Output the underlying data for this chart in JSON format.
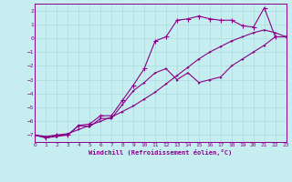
{
  "xlabel": "Windchill (Refroidissement éolien,°C)",
  "bg_color": "#c6eef0",
  "grid_color": "#a8d8da",
  "line_color": "#880088",
  "xmin": 0,
  "xmax": 23,
  "ymin": -7.5,
  "ymax": 2.5,
  "yticks": [
    -7,
    -6,
    -5,
    -4,
    -3,
    -2,
    -1,
    0,
    1,
    2
  ],
  "xticks": [
    0,
    1,
    2,
    3,
    4,
    5,
    6,
    7,
    8,
    9,
    10,
    11,
    12,
    13,
    14,
    15,
    16,
    17,
    18,
    19,
    20,
    21,
    22,
    23
  ],
  "line_diag_x": [
    0,
    1,
    2,
    3,
    4,
    5,
    6,
    7,
    8,
    9,
    10,
    11,
    12,
    13,
    14,
    15,
    16,
    17,
    18,
    19,
    20,
    21,
    22,
    23
  ],
  "line_diag_y": [
    -7.0,
    -7.1,
    -7.0,
    -6.9,
    -6.6,
    -6.3,
    -6.0,
    -5.7,
    -5.3,
    -4.9,
    -4.4,
    -3.9,
    -3.3,
    -2.7,
    -2.1,
    -1.5,
    -1.0,
    -0.6,
    -0.2,
    0.1,
    0.4,
    0.6,
    0.4,
    0.1
  ],
  "line_smooth_x": [
    0,
    1,
    2,
    3,
    4,
    5,
    6,
    7,
    8,
    9,
    10,
    11,
    12,
    13,
    14,
    15,
    16,
    17,
    18,
    19,
    20,
    21,
    22,
    23
  ],
  "line_smooth_y": [
    -7.0,
    -7.2,
    -7.1,
    -7.0,
    -6.3,
    -6.4,
    -5.8,
    -5.8,
    -4.8,
    -3.8,
    -3.2,
    -2.5,
    -2.2,
    -3.0,
    -2.5,
    -3.2,
    -3.0,
    -2.8,
    -2.0,
    -1.5,
    -1.0,
    -0.5,
    0.1,
    0.1
  ],
  "line_peak_x": [
    0,
    1,
    2,
    3,
    4,
    5,
    6,
    7,
    8,
    9,
    10,
    11,
    12,
    13,
    14,
    15,
    16,
    17,
    18,
    19,
    20,
    21,
    22,
    23
  ],
  "line_peak_y": [
    -7.0,
    -7.2,
    -7.0,
    -7.0,
    -6.3,
    -6.2,
    -5.6,
    -5.6,
    -4.5,
    -3.4,
    -2.2,
    -0.2,
    0.1,
    1.3,
    1.4,
    1.6,
    1.4,
    1.3,
    1.3,
    0.9,
    0.8,
    2.2,
    0.1,
    0.1
  ]
}
